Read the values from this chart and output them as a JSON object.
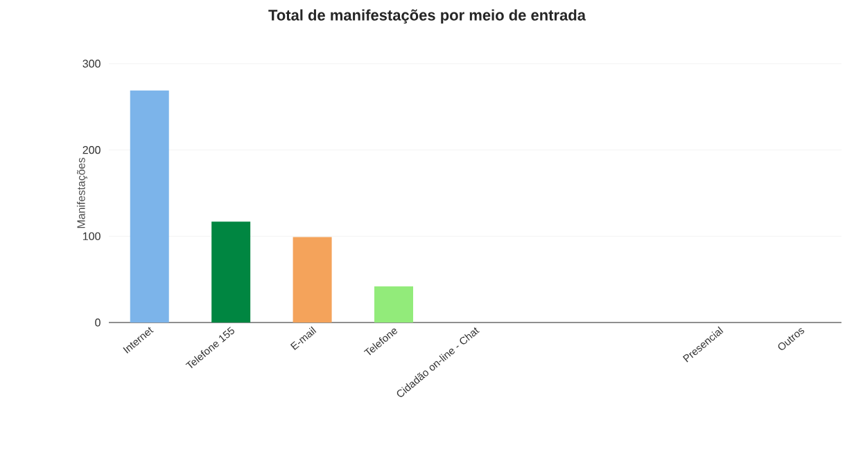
{
  "chart_data": {
    "type": "bar",
    "title": "Total de manifestações por meio de entrada",
    "ylabel": "Manifestações",
    "categories": [
      "Internet",
      "Telefone 155",
      "E-mail",
      "Telefone",
      "Cidadão on-line - Chat",
      null,
      null,
      "Presencial",
      "Outros"
    ],
    "values": [
      269,
      117,
      99,
      42,
      0,
      0,
      0,
      0,
      0
    ],
    "colors": [
      "#7cb4ea",
      "#008641",
      "#f4a35b",
      "#92eb7a",
      "#7cb4ea",
      "#008641",
      "#f4a35b",
      "#92eb7a",
      "#7cb4ea"
    ],
    "ylim": [
      0,
      300
    ],
    "yticks": [
      0,
      100,
      200,
      300
    ],
    "grid": "y"
  }
}
